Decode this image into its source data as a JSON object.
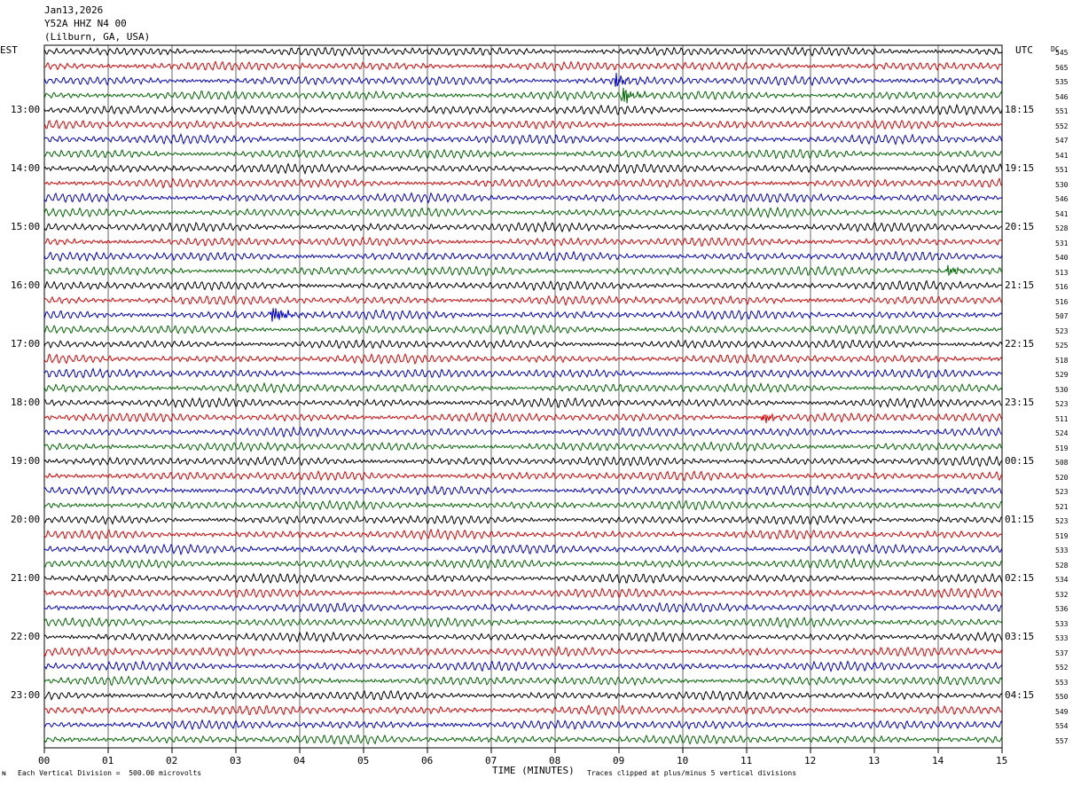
{
  "header": {
    "date": "Jan13,2026",
    "station": "Y52A HHZ N4 00",
    "location": "(Lilburn, GA, USA)"
  },
  "left_tz": "EST",
  "right_tz": "UTC",
  "dc_header": "DC",
  "footer": {
    "vertical_division": "Each Vertical Division =  500.00 microvolts",
    "clipping": "Traces clipped at plus/minus 5 vertical divisions"
  },
  "chart_data": {
    "type": "line",
    "title": "",
    "xlabel": "TIME (MINUTES)",
    "ylabel": "",
    "xlim": [
      0,
      15
    ],
    "x_ticks": [
      "00",
      "01",
      "02",
      "03",
      "04",
      "05",
      "06",
      "07",
      "08",
      "09",
      "10",
      "11",
      "12",
      "13",
      "14",
      "15"
    ],
    "left_hour_labels": [
      "13:00",
      "14:00",
      "15:00",
      "16:00",
      "17:00",
      "18:00",
      "19:00",
      "20:00",
      "21:00",
      "22:00",
      "23:00"
    ],
    "right_hour_labels": [
      "18:15",
      "19:15",
      "20:15",
      "21:15",
      "22:15",
      "23:15",
      "00:15",
      "01:15",
      "02:15",
      "03:15",
      "04:15"
    ],
    "trace_colors": [
      "#000000",
      "#dd0000",
      "#0000cc",
      "#006600"
    ],
    "grid": true,
    "trace_count": 48,
    "dc_offsets": [
      545,
      565,
      535,
      546,
      551,
      552,
      547,
      541,
      551,
      530,
      546,
      541,
      528,
      531,
      540,
      513,
      516,
      516,
      507,
      523,
      525,
      518,
      529,
      530,
      523,
      511,
      524,
      519,
      508,
      520,
      523,
      521,
      523,
      519,
      533,
      528,
      534,
      532,
      536,
      533,
      533,
      537,
      552,
      553,
      550,
      549,
      554,
      557
    ],
    "events": [
      {
        "trace": 3,
        "minute": 9.05,
        "amplitude": 2.6
      },
      {
        "trace": 15,
        "minute": 14.15,
        "amplitude": 1.8
      },
      {
        "trace": 18,
        "minute": 3.55,
        "amplitude": 3.5
      },
      {
        "trace": 25,
        "minute": 11.25,
        "amplitude": 1.6
      },
      {
        "trace": 2,
        "minute": 8.95,
        "amplitude": 2.2
      }
    ]
  }
}
